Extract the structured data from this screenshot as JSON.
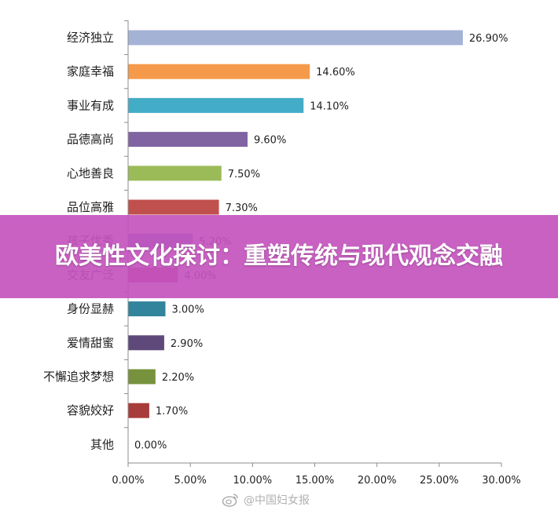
{
  "banner": {
    "title": "欧美性文化探讨：重塑传统与现代观念交融"
  },
  "watermark": {
    "text": "@中国妇女报",
    "icon": "weibo-icon"
  },
  "chart_data": {
    "type": "bar",
    "orientation": "horizontal",
    "categories": [
      "经济独立",
      "家庭幸福",
      "事业有成",
      "品德高尚",
      "心地善良",
      "品位高雅",
      "孩子优秀",
      "交友广泛",
      "身份显赫",
      "爱情甜蜜",
      "不懈追求梦想",
      "容貌姣好",
      "其他"
    ],
    "values": [
      26.9,
      14.6,
      14.1,
      9.6,
      7.5,
      7.3,
      5.2,
      4.0,
      3.0,
      2.9,
      2.2,
      1.7,
      0.0
    ],
    "value_labels": [
      "26.90%",
      "14.60%",
      "14.10%",
      "9.60%",
      "7.50%",
      "7.30%",
      "5.20%",
      "4.00%",
      "3.00%",
      "2.90%",
      "2.20%",
      "1.70%",
      "0.00%"
    ],
    "colors": [
      "#a4b2d6",
      "#f59a4a",
      "#43acc7",
      "#8064a2",
      "#9bbb59",
      "#c0504d",
      "#4f81bd",
      "#b4396e",
      "#31849b",
      "#5f497a",
      "#76923c",
      "#a83c3a",
      "#4f81bd"
    ],
    "xlim": [
      0,
      30
    ],
    "xticks": [
      0,
      5,
      10,
      15,
      20,
      25,
      30
    ],
    "xtick_labels": [
      "0.00%",
      "5.00%",
      "10.00%",
      "15.00%",
      "20.00%",
      "25.00%",
      "30.00%"
    ],
    "title": "",
    "xlabel": "",
    "ylabel": "",
    "grid": false,
    "legend": "none"
  }
}
